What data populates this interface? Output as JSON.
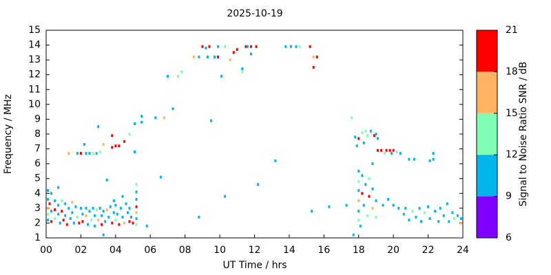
{
  "chart_data": {
    "type": "scatter",
    "title": "2025-10-19",
    "x_label": "UT Time / hrs",
    "y_label": "Frequency / MHz",
    "xlim": [
      0,
      24
    ],
    "ylim": [
      1,
      15
    ],
    "xticks": [
      {
        "value": 0,
        "label": "00"
      },
      {
        "value": 2,
        "label": "02"
      },
      {
        "value": 4,
        "label": "04"
      },
      {
        "value": 6,
        "label": "06"
      },
      {
        "value": 8,
        "label": "08"
      },
      10,
      12,
      14,
      16,
      18,
      20,
      22,
      24
    ],
    "yticks": [
      1,
      2,
      3,
      4,
      5,
      6,
      7,
      8,
      9,
      10,
      11,
      12,
      13,
      14,
      15
    ],
    "colorbar": {
      "label": "Signal to Noise Ratio SNR / dB",
      "bounds": [
        6,
        9,
        12,
        15,
        18,
        21
      ],
      "colors": [
        "#8000ff",
        "#00b4ec",
        "#80ffb4",
        "#ffb464",
        "#ff0000"
      ]
    },
    "points": [
      [
        0.1,
        4.2,
        10
      ],
      [
        0.1,
        3.6,
        10
      ],
      [
        0.1,
        3.0,
        16
      ],
      [
        0.1,
        2.6,
        13
      ],
      [
        0.1,
        2.2,
        10
      ],
      [
        0.2,
        3.3,
        19
      ],
      [
        0.3,
        4.0,
        10
      ],
      [
        0.3,
        2.8,
        10
      ],
      [
        0.3,
        2.1,
        19
      ],
      [
        0.5,
        3.5,
        10
      ],
      [
        0.5,
        2.9,
        19
      ],
      [
        0.5,
        2.3,
        13
      ],
      [
        0.7,
        4.4,
        10
      ],
      [
        0.7,
        3.2,
        10
      ],
      [
        0.7,
        2.6,
        10
      ],
      [
        0.8,
        2.0,
        10
      ],
      [
        0.9,
        3.5,
        13
      ],
      [
        0.9,
        2.8,
        19
      ],
      [
        1.0,
        2.2,
        19
      ],
      [
        1.1,
        3.3,
        10
      ],
      [
        1.1,
        2.5,
        10
      ],
      [
        1.2,
        1.9,
        19
      ],
      [
        1.3,
        3.0,
        10
      ],
      [
        1.4,
        2.3,
        10
      ],
      [
        1.5,
        3.4,
        16
      ],
      [
        1.5,
        2.7,
        10
      ],
      [
        1.6,
        2.0,
        10
      ],
      [
        1.7,
        3.1,
        10
      ],
      [
        1.8,
        2.4,
        13
      ],
      [
        1.9,
        2.0,
        19
      ],
      [
        2.0,
        3.0,
        10
      ],
      [
        2.1,
        2.6,
        10
      ],
      [
        2.1,
        2.1,
        19
      ],
      [
        2.3,
        3.0,
        10
      ],
      [
        2.3,
        2.5,
        16
      ],
      [
        2.4,
        1.9,
        10
      ],
      [
        2.5,
        2.8,
        10
      ],
      [
        2.6,
        2.2,
        13
      ],
      [
        2.7,
        3.0,
        10
      ],
      [
        2.8,
        2.5,
        10
      ],
      [
        2.8,
        1.8,
        10
      ],
      [
        2.9,
        2.9,
        13
      ],
      [
        3.0,
        2.2,
        16
      ],
      [
        3.1,
        3.0,
        10
      ],
      [
        3.2,
        2.5,
        10
      ],
      [
        3.2,
        1.9,
        19
      ],
      [
        3.3,
        2.8,
        10
      ],
      [
        3.4,
        2.1,
        10
      ],
      [
        3.5,
        2.9,
        16
      ],
      [
        3.6,
        2.4,
        10
      ],
      [
        3.7,
        3.1,
        10
      ],
      [
        3.8,
        2.0,
        19
      ],
      [
        3.9,
        2.7,
        10
      ],
      [
        4.0,
        3.2,
        10
      ],
      [
        4.0,
        2.2,
        13
      ],
      [
        4.1,
        2.6,
        10
      ],
      [
        4.2,
        1.9,
        19
      ],
      [
        4.3,
        3.0,
        10
      ],
      [
        4.4,
        2.4,
        10
      ],
      [
        4.5,
        2.0,
        16
      ],
      [
        4.6,
        3.3,
        10
      ],
      [
        4.7,
        2.7,
        10
      ],
      [
        4.8,
        2.1,
        19
      ],
      [
        4.8,
        3.0,
        10
      ],
      [
        4.9,
        2.4,
        10
      ],
      [
        5.0,
        2.0,
        19
      ],
      [
        5.2,
        4.6,
        13
      ],
      [
        5.2,
        4.1,
        10
      ],
      [
        5.2,
        3.6,
        10
      ],
      [
        5.2,
        3.1,
        19
      ],
      [
        5.2,
        2.7,
        16
      ],
      [
        5.2,
        2.3,
        10
      ],
      [
        5.2,
        1.9,
        13
      ],
      [
        5.8,
        1.8,
        10
      ],
      [
        3.3,
        1.2,
        10
      ],
      [
        3.5,
        4.9,
        10
      ],
      [
        4.4,
        3.8,
        10
      ],
      [
        3.9,
        3.5,
        10
      ],
      [
        1.3,
        6.7,
        16
      ],
      [
        1.8,
        6.7,
        10
      ],
      [
        2.0,
        6.7,
        19
      ],
      [
        2.2,
        7.3,
        10
      ],
      [
        2.3,
        6.7,
        10
      ],
      [
        2.5,
        6.7,
        10
      ],
      [
        2.7,
        6.7,
        13
      ],
      [
        2.9,
        6.7,
        10
      ],
      [
        3.0,
        8.5,
        10
      ],
      [
        3.1,
        6.8,
        13
      ],
      [
        3.3,
        7.3,
        16
      ],
      [
        3.8,
        7.9,
        19
      ],
      [
        3.8,
        7.1,
        19
      ],
      [
        4.0,
        7.2,
        19
      ],
      [
        4.2,
        7.2,
        19
      ],
      [
        4.5,
        7.5,
        19
      ],
      [
        4.8,
        8.0,
        13
      ],
      [
        5.1,
        8.7,
        10
      ],
      [
        5.1,
        6.8,
        10
      ],
      [
        5.5,
        9.2,
        10
      ],
      [
        5.5,
        8.8,
        10
      ],
      [
        6.3,
        9.1,
        10
      ],
      [
        6.6,
        5.1,
        10
      ],
      [
        6.8,
        9.1,
        16
      ],
      [
        7.0,
        11.9,
        10
      ],
      [
        7.3,
        9.7,
        10
      ],
      [
        7.6,
        11.9,
        13
      ],
      [
        7.8,
        12.2,
        13
      ],
      [
        8.5,
        13.2,
        16
      ],
      [
        8.8,
        13.2,
        10
      ],
      [
        9.0,
        13.9,
        19
      ],
      [
        9.2,
        13.8,
        10
      ],
      [
        9.3,
        13.2,
        10
      ],
      [
        9.4,
        13.9,
        19
      ],
      [
        9.5,
        8.9,
        10
      ],
      [
        9.7,
        13.2,
        10
      ],
      [
        9.9,
        13.2,
        19
      ],
      [
        9.9,
        13.9,
        10
      ],
      [
        10.1,
        11.9,
        10
      ],
      [
        10.3,
        13.9,
        13
      ],
      [
        10.3,
        3.8,
        10
      ],
      [
        10.6,
        13.0,
        16
      ],
      [
        10.8,
        13.5,
        19
      ],
      [
        11.0,
        13.7,
        19
      ],
      [
        11.3,
        12.4,
        10
      ],
      [
        11.3,
        12.2,
        13
      ],
      [
        11.5,
        13.9,
        19
      ],
      [
        11.6,
        13.9,
        10
      ],
      [
        11.8,
        13.9,
        19
      ],
      [
        11.8,
        13.4,
        10
      ],
      [
        12.1,
        13.9,
        19
      ],
      [
        12.2,
        4.6,
        10
      ],
      [
        13.2,
        6.2,
        10
      ],
      [
        13.8,
        13.9,
        10
      ],
      [
        14.1,
        13.9,
        10
      ],
      [
        14.4,
        13.9,
        10
      ],
      [
        14.6,
        13.9,
        13
      ],
      [
        15.2,
        13.9,
        19
      ],
      [
        15.3,
        2.8,
        10
      ],
      [
        15.4,
        13.2,
        16
      ],
      [
        15.4,
        12.5,
        19
      ],
      [
        15.6,
        13.2,
        19
      ],
      [
        16.3,
        3.1,
        10
      ],
      [
        8.8,
        2.4,
        10
      ],
      [
        17.3,
        3.2,
        10
      ],
      [
        17.6,
        9.1,
        13
      ],
      [
        17.7,
        1.2,
        10
      ],
      [
        17.8,
        7.8,
        10
      ],
      [
        17.9,
        7.2,
        10
      ],
      [
        18.0,
        7.7,
        19
      ],
      [
        18.0,
        5.5,
        10
      ],
      [
        18.0,
        4.8,
        13
      ],
      [
        18.0,
        4.2,
        10
      ],
      [
        18.0,
        3.5,
        16
      ],
      [
        18.0,
        2.8,
        10
      ],
      [
        18.0,
        2.2,
        13
      ],
      [
        18.1,
        1.8,
        10
      ],
      [
        18.2,
        8.1,
        13
      ],
      [
        18.2,
        5.2,
        10
      ],
      [
        18.2,
        4.0,
        19
      ],
      [
        18.3,
        7.4,
        10
      ],
      [
        18.3,
        3.2,
        10
      ],
      [
        18.4,
        8.2,
        13
      ],
      [
        18.4,
        4.6,
        10
      ],
      [
        18.5,
        7.9,
        13
      ],
      [
        18.5,
        2.5,
        13
      ],
      [
        18.6,
        5.0,
        13
      ],
      [
        18.6,
        3.8,
        19
      ],
      [
        18.7,
        8.2,
        10
      ],
      [
        18.8,
        6.0,
        10
      ],
      [
        18.8,
        4.3,
        10
      ],
      [
        18.8,
        3.0,
        16
      ],
      [
        18.9,
        7.9,
        19
      ],
      [
        19.0,
        8.0,
        10
      ],
      [
        19.0,
        3.5,
        10
      ],
      [
        19.0,
        2.4,
        13
      ],
      [
        19.1,
        7.7,
        10
      ],
      [
        19.1,
        6.9,
        19
      ],
      [
        19.3,
        6.9,
        19
      ],
      [
        19.4,
        3.2,
        10
      ],
      [
        19.5,
        6.7,
        13
      ],
      [
        19.6,
        6.9,
        19
      ],
      [
        19.7,
        3.6,
        10
      ],
      [
        19.8,
        6.9,
        19
      ],
      [
        19.9,
        6.7,
        10
      ],
      [
        20.0,
        6.9,
        19
      ],
      [
        20.0,
        3.2,
        10
      ],
      [
        20.2,
        6.8,
        13
      ],
      [
        20.3,
        3.0,
        10
      ],
      [
        20.4,
        6.7,
        10
      ],
      [
        20.6,
        2.6,
        10
      ],
      [
        20.7,
        3.0,
        10
      ],
      [
        20.9,
        6.3,
        10
      ],
      [
        20.9,
        2.2,
        10
      ],
      [
        21.1,
        2.8,
        13
      ],
      [
        21.2,
        6.3,
        10
      ],
      [
        21.3,
        2.4,
        10
      ],
      [
        21.5,
        3.0,
        10
      ],
      [
        21.6,
        2.1,
        10
      ],
      [
        21.8,
        2.7,
        13
      ],
      [
        22.0,
        3.1,
        10
      ],
      [
        22.1,
        6.2,
        10
      ],
      [
        22.1,
        2.3,
        10
      ],
      [
        22.3,
        6.7,
        10
      ],
      [
        22.3,
        6.3,
        10
      ],
      [
        22.4,
        2.8,
        10
      ],
      [
        22.6,
        2.1,
        10
      ],
      [
        22.7,
        3.0,
        10
      ],
      [
        22.9,
        2.5,
        10
      ],
      [
        23.1,
        3.3,
        10
      ],
      [
        23.2,
        2.1,
        10
      ],
      [
        23.4,
        2.7,
        10
      ],
      [
        23.5,
        2.3,
        13
      ],
      [
        23.7,
        2.5,
        10
      ],
      [
        23.9,
        2.0,
        16
      ],
      [
        23.9,
        2.3,
        10
      ]
    ]
  }
}
